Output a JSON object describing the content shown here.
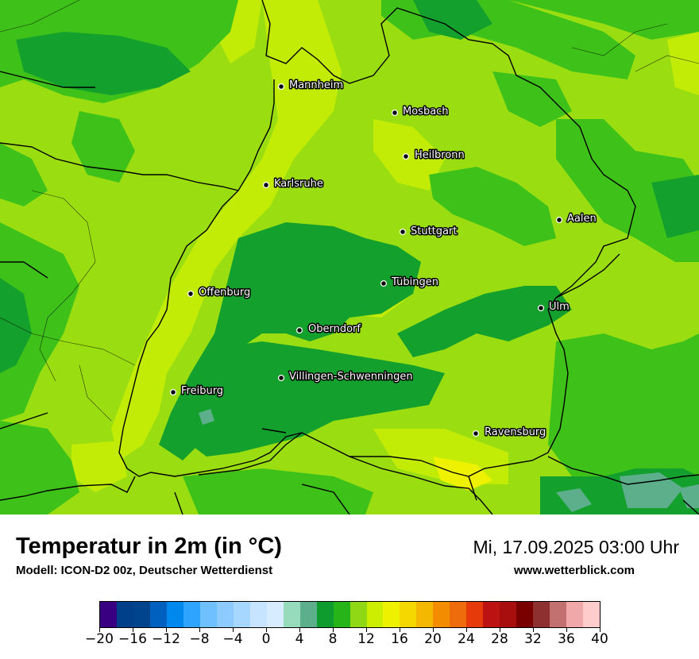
{
  "map": {
    "region": "Baden-Württemberg",
    "cities": [
      {
        "name": "Mannheim"
      },
      {
        "name": "Mosbach"
      },
      {
        "name": "Heilbronn"
      },
      {
        "name": "Karlsruhe"
      },
      {
        "name": "Aalen"
      },
      {
        "name": "Stuttgart"
      },
      {
        "name": "Tübingen"
      },
      {
        "name": "Offenburg"
      },
      {
        "name": "Ulm"
      },
      {
        "name": "Oberndorf"
      },
      {
        "name": "Villingen-Schwenningen"
      },
      {
        "name": "Freiburg"
      },
      {
        "name": "Ravensburg"
      }
    ]
  },
  "header": {
    "title": "Temperatur in 2m (in °C)",
    "subtitle": "Modell: ICON-D2 00z, Deutscher Wetterdienst",
    "datetime": "Mi, 17.09.2025 03:00 Uhr",
    "website": "www.wetterblick.com"
  },
  "legend": {
    "tick_labels": [
      "−20",
      "−16",
      "−12",
      "−8",
      "−4",
      "0",
      "4",
      "8",
      "12",
      "16",
      "20",
      "24",
      "28",
      "32",
      "36",
      "40"
    ],
    "colors": [
      "#3a0082",
      "#003f8a",
      "#00448e",
      "#0060c0",
      "#0088ee",
      "#2ea4ff",
      "#6ec0ff",
      "#8ccaff",
      "#a6d8ff",
      "#c6e4ff",
      "#d8ecff",
      "#96dcbc",
      "#5caf8a",
      "#0e9c2e",
      "#26b418",
      "#90d816",
      "#ccee00",
      "#eef200",
      "#f4d800",
      "#f4b800",
      "#f48c00",
      "#ee6c0c",
      "#e63a0a",
      "#bc1212",
      "#a80e0e",
      "#7a0000",
      "#8e3030",
      "#c27070",
      "#f0a8a8",
      "#ffcccc"
    ]
  }
}
